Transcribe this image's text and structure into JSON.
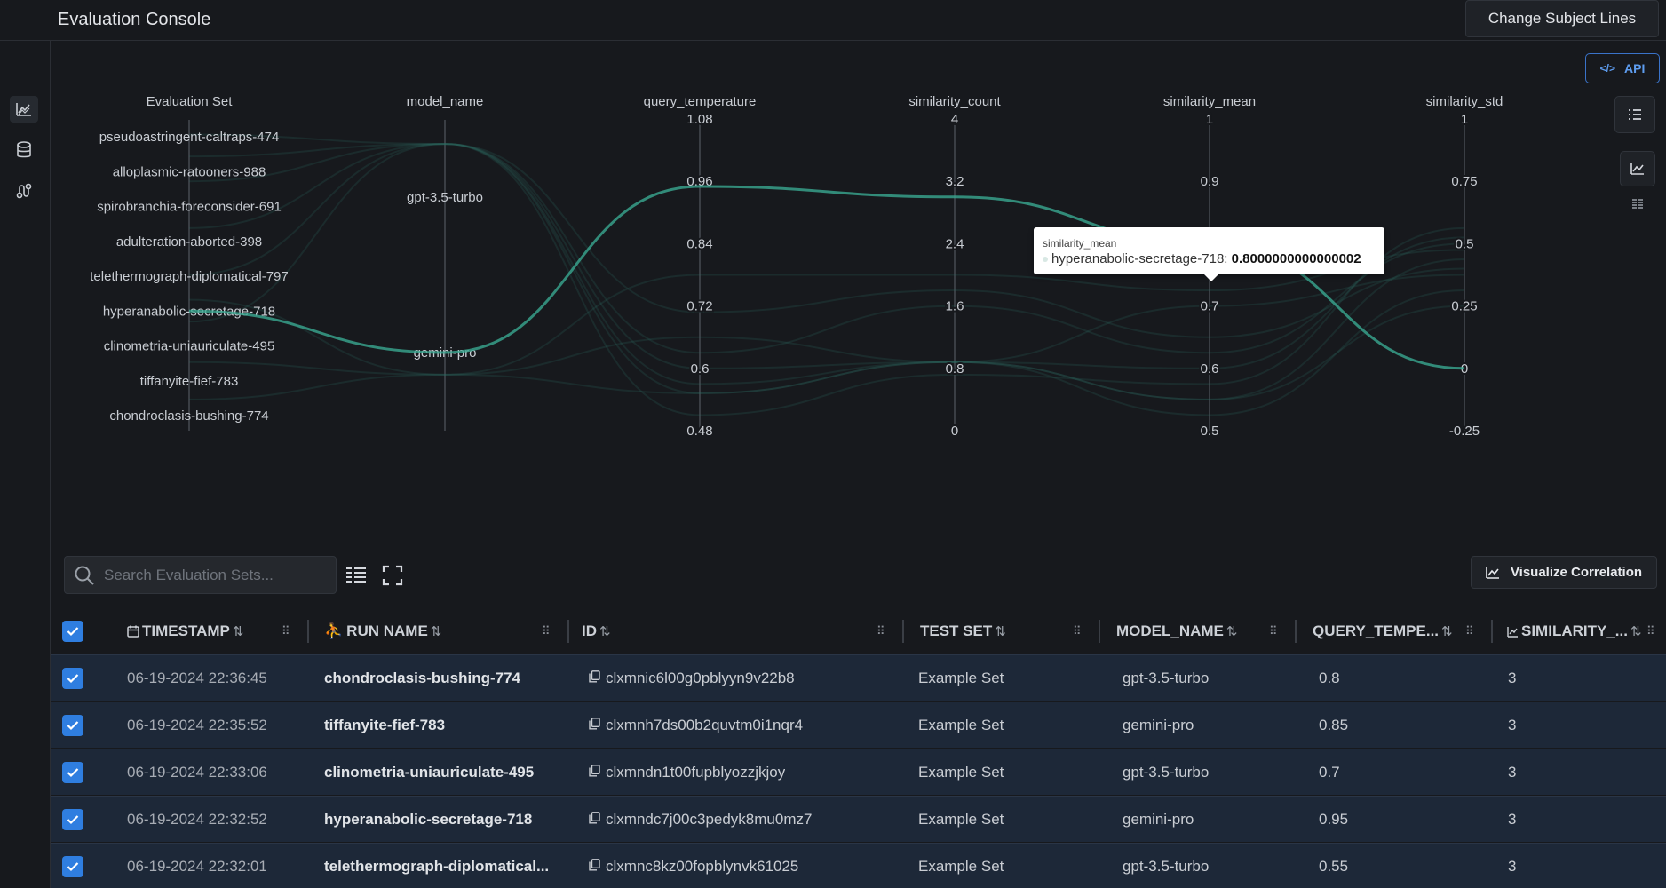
{
  "app": {
    "title": "Evaluation Console",
    "top_button": "Change Subject Lines"
  },
  "nav": {
    "icons": [
      "chart-line-icon",
      "database-icon",
      "route-icon"
    ]
  },
  "api_button": "API",
  "chart_data": {
    "type": "parallel-coordinates",
    "axes": [
      {
        "name": "Evaluation Set",
        "categorical": true,
        "ticks": [
          "pseudoastringent-caltraps-474",
          "alloplasmic-ratooners-988",
          "spirobranchia-foreconsider-691",
          "adulteration-aborted-398",
          "telethermograph-diplomatical-797",
          "hyperanabolic-secretage-718",
          "clinometria-uniauriculate-495",
          "tiffanyite-fief-783",
          "chondroclasis-bushing-774"
        ]
      },
      {
        "name": "model_name",
        "categorical": true,
        "ticks": [
          "gpt-3.5-turbo",
          "gemini-pro"
        ]
      },
      {
        "name": "query_temperature",
        "range": [
          0.48,
          1.08
        ],
        "ticks": [
          "1.08",
          "0.96",
          "0.84",
          "0.72",
          "0.6",
          "0.48"
        ]
      },
      {
        "name": "similarity_count",
        "range": [
          0,
          4
        ],
        "ticks": [
          "4",
          "3.2",
          "2.4",
          "1.6",
          "0.8",
          "0"
        ]
      },
      {
        "name": "similarity_mean",
        "range": [
          0.5,
          1
        ],
        "ticks": [
          "1",
          "0.9",
          "0.8",
          "0.7",
          "0.6",
          "0.5"
        ]
      },
      {
        "name": "similarity_std",
        "range": [
          -0.25,
          1
        ],
        "ticks": [
          "1",
          "0.75",
          "0.5",
          "0.25",
          "0",
          "-0.25"
        ]
      }
    ],
    "highlighted": {
      "Evaluation Set": "hyperanabolic-secretage-718",
      "model_name": "gemini-pro",
      "query_temperature": 0.95,
      "similarity_count": 3,
      "similarity_mean": 0.8,
      "similarity_std": 0
    },
    "accent_color": "#3aa891"
  },
  "tooltip": {
    "title": "similarity_mean",
    "label": "hyperanabolic-secretage-718: ",
    "value": "0.8000000000000002"
  },
  "search": {
    "placeholder": "Search Evaluation Sets..."
  },
  "visualize_button": "Visualize Correlation",
  "table": {
    "columns": [
      "TIMESTAMP",
      "RUN NAME",
      "ID",
      "TEST SET",
      "MODEL_NAME",
      "QUERY_TEMPE...",
      "SIMILARITY_..."
    ],
    "rows": [
      {
        "timestamp": "06-19-2024 22:36:45",
        "run_name": "chondroclasis-bushing-774",
        "id": "clxmnic6l00g0pblyyn9v22b8",
        "test_set": "Example Set",
        "model": "gpt-3.5-turbo",
        "temp": "0.8",
        "sim": "3"
      },
      {
        "timestamp": "06-19-2024 22:35:52",
        "run_name": "tiffanyite-fief-783",
        "id": "clxmnh7ds00b2quvtm0i1nqr4",
        "test_set": "Example Set",
        "model": "gemini-pro",
        "temp": "0.85",
        "sim": "3"
      },
      {
        "timestamp": "06-19-2024 22:33:06",
        "run_name": "clinometria-uniauriculate-495",
        "id": "clxmndn1t00fupblyozzjkjoy",
        "test_set": "Example Set",
        "model": "gpt-3.5-turbo",
        "temp": "0.7",
        "sim": "3"
      },
      {
        "timestamp": "06-19-2024 22:32:52",
        "run_name": "hyperanabolic-secretage-718",
        "id": "clxmndc7j00c3pedyk8mu0mz7",
        "test_set": "Example Set",
        "model": "gemini-pro",
        "temp": "0.95",
        "sim": "3"
      },
      {
        "timestamp": "06-19-2024 22:32:01",
        "run_name": "telethermograph-diplomatical...",
        "id": "clxmnc8kz00fopblynvk61025",
        "test_set": "Example Set",
        "model": "gpt-3.5-turbo",
        "temp": "0.55",
        "sim": "3"
      }
    ]
  }
}
